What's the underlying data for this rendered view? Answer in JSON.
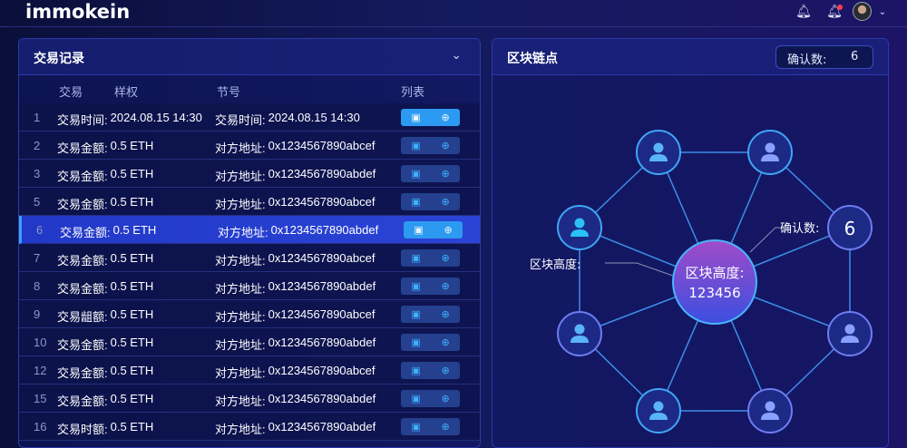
{
  "app": {
    "logo": "immokein"
  },
  "topbar": {
    "icons": [
      "bell-icon",
      "bell-notification-icon",
      "avatar",
      "chevron-down-icon"
    ]
  },
  "transactions": {
    "title": "交易记录",
    "columns": [
      "交易",
      "样权",
      "节号",
      "列表"
    ],
    "rows": [
      {
        "n": "1",
        "a": "交易时间:",
        "b": "2024.08.15 14:30",
        "c": "交易时间:",
        "d": "2024.08.15 14:30"
      },
      {
        "n": "2",
        "a": "交易金额:",
        "b": "0.5 ETH",
        "c": "对方地址:",
        "d": "0x1234567890abcef"
      },
      {
        "n": "3",
        "a": "交易金额:",
        "b": "0.5 ETH",
        "c": "对方地址:",
        "d": "0x1234567890abdef"
      },
      {
        "n": "5",
        "a": "交易金额:",
        "b": "0.5 ETH",
        "c": "对方地址:",
        "d": "0x1234567890abcef"
      },
      {
        "n": "6",
        "a": "交易金额:",
        "b": "0.5 ETH",
        "c": "对方地址:",
        "d": "0x1234567890abdef"
      },
      {
        "n": "7",
        "a": "交易金额:",
        "b": "0.5 ETH",
        "c": "对方地址:",
        "d": "0x1234567890abcef"
      },
      {
        "n": "8",
        "a": "交易金额:",
        "b": "0.5 ETH",
        "c": "对方地址:",
        "d": "0x1234567890abdef"
      },
      {
        "n": "9",
        "a": "交易龃额:",
        "b": "0.5 ETH",
        "c": "对方地址:",
        "d": "0x1234567890abcef"
      },
      {
        "n": "10",
        "a": "交易金额:",
        "b": "0.5 ETH",
        "c": "对方地址:",
        "d": "0x1234567890abdef"
      },
      {
        "n": "12",
        "a": "交易金额:",
        "b": "0.5 ETH",
        "c": "对方地址:",
        "d": "0x1234567890abcef"
      },
      {
        "n": "15",
        "a": "交易金额:",
        "b": "0.5 ETH",
        "c": "对方地址:",
        "d": "0x1234567890abdef"
      },
      {
        "n": "16",
        "a": "交易时额:",
        "b": "0.5 ETH",
        "c": "对方地址:",
        "d": "0x1234567890abdef"
      }
    ],
    "selected_rows": [
      "1",
      "6"
    ]
  },
  "nodes": {
    "title": "区块链点",
    "confirm_label": "确认数:",
    "confirm_value": "6",
    "center_label": "区块高度:",
    "center_value": "123456",
    "left_callout": "区块高度:",
    "right_callout": "确认数:",
    "right_node_value": "6"
  }
}
